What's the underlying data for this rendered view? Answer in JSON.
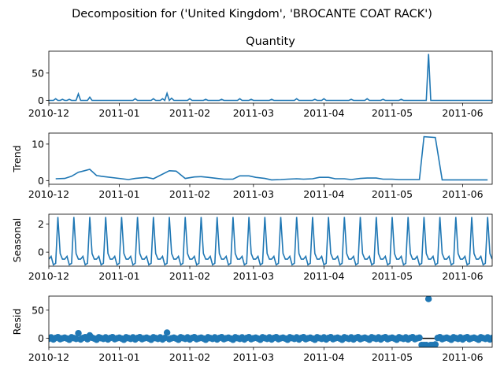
{
  "suptitle": "Decomposition for ('United Kingdom', 'BROCANTE COAT RACK')",
  "colors": {
    "line": "#1f77b4",
    "marker": "#1f77b4",
    "zero": "#000000"
  },
  "chart_data": [
    {
      "type": "line",
      "id": "observed",
      "title": "Quantity",
      "ylabel": "",
      "xlim": [
        "2010-12-01",
        "2011-06-14"
      ],
      "ylim": [
        -5,
        90
      ],
      "yticks": [
        0,
        50
      ],
      "xtick_labels": [
        "2010-12",
        "2011-01",
        "2011-02",
        "2011-03",
        "2011-04",
        "2011-05",
        "2011-06"
      ],
      "series_note": "daily quantity, mostly 0 with small spikes",
      "spikes": [
        {
          "x": "2010-12-04",
          "y": 3
        },
        {
          "x": "2010-12-07",
          "y": 2
        },
        {
          "x": "2010-12-10",
          "y": 2
        },
        {
          "x": "2010-12-14",
          "y": 12
        },
        {
          "x": "2010-12-19",
          "y": 6
        },
        {
          "x": "2011-01-08",
          "y": 3
        },
        {
          "x": "2011-01-16",
          "y": 3
        },
        {
          "x": "2011-01-20",
          "y": 3
        },
        {
          "x": "2011-01-22",
          "y": 13
        },
        {
          "x": "2011-01-24",
          "y": 4
        },
        {
          "x": "2011-02-01",
          "y": 3
        },
        {
          "x": "2011-02-08",
          "y": 2
        },
        {
          "x": "2011-02-15",
          "y": 2
        },
        {
          "x": "2011-02-23",
          "y": 3
        },
        {
          "x": "2011-02-28",
          "y": 2
        },
        {
          "x": "2011-03-09",
          "y": 2
        },
        {
          "x": "2011-03-20",
          "y": 3
        },
        {
          "x": "2011-03-28",
          "y": 2
        },
        {
          "x": "2011-04-01",
          "y": 3
        },
        {
          "x": "2011-04-13",
          "y": 2
        },
        {
          "x": "2011-04-20",
          "y": 3
        },
        {
          "x": "2011-04-27",
          "y": 2
        },
        {
          "x": "2011-05-05",
          "y": 2
        },
        {
          "x": "2011-05-17",
          "y": 85
        }
      ]
    },
    {
      "type": "line",
      "id": "trend",
      "title": "",
      "ylabel": "Trend",
      "xlim": [
        "2010-12-01",
        "2011-06-14"
      ],
      "ylim": [
        -1,
        13
      ],
      "yticks": [
        0,
        10
      ],
      "xtick_labels": [
        "2010-12",
        "2011-01",
        "2011-02",
        "2011-03",
        "2011-04",
        "2011-05",
        "2011-06"
      ],
      "x": [
        "2010-12-04",
        "2010-12-08",
        "2010-12-11",
        "2010-12-14",
        "2010-12-16",
        "2010-12-19",
        "2010-12-22",
        "2010-12-24",
        "2011-01-05",
        "2011-01-08",
        "2011-01-13",
        "2011-01-16",
        "2011-01-23",
        "2011-01-26",
        "2011-01-30",
        "2011-02-03",
        "2011-02-06",
        "2011-02-09",
        "2011-02-13",
        "2011-02-16",
        "2011-02-20",
        "2011-02-23",
        "2011-02-27",
        "2011-03-02",
        "2011-03-06",
        "2011-03-09",
        "2011-03-13",
        "2011-03-16",
        "2011-03-20",
        "2011-03-23",
        "2011-03-27",
        "2011-03-30",
        "2011-04-03",
        "2011-04-06",
        "2011-04-10",
        "2011-04-13",
        "2011-04-17",
        "2011-04-20",
        "2011-04-24",
        "2011-04-27",
        "2011-05-01",
        "2011-05-04",
        "2011-05-08",
        "2011-05-13",
        "2011-05-15",
        "2011-05-20",
        "2011-05-23",
        "2011-06-12"
      ],
      "values": [
        0.5,
        0.6,
        1.2,
        2.3,
        2.6,
        3.1,
        1.4,
        1.2,
        0.3,
        0.6,
        0.9,
        0.5,
        2.7,
        2.6,
        0.6,
        1.0,
        1.1,
        0.9,
        0.6,
        0.4,
        0.4,
        1.3,
        1.3,
        0.9,
        0.6,
        0.2,
        0.3,
        0.4,
        0.5,
        0.4,
        0.5,
        0.9,
        0.9,
        0.5,
        0.5,
        0.3,
        0.6,
        0.7,
        0.7,
        0.4,
        0.4,
        0.3,
        0.3,
        0.3,
        12.0,
        11.8,
        0.2,
        0.2
      ]
    },
    {
      "type": "line",
      "id": "seasonal",
      "title": "",
      "ylabel": "Seasonal",
      "xlim": [
        "2010-12-01",
        "2011-06-14"
      ],
      "ylim": [
        -1.0,
        2.7
      ],
      "yticks": [
        0,
        2
      ],
      "xtick_labels": [
        "2010-12",
        "2011-01",
        "2011-02",
        "2011-03",
        "2011-04",
        "2011-05",
        "2011-06"
      ],
      "period": 7,
      "pattern": [
        -0.5,
        -0.3,
        -0.9,
        -0.8,
        2.5,
        -0.1,
        -0.5
      ],
      "start": "2010-12-01"
    },
    {
      "type": "scatter",
      "id": "resid",
      "title": "",
      "ylabel": "Resid",
      "xlim": [
        "2010-12-01",
        "2011-06-14"
      ],
      "ylim": [
        -16,
        75
      ],
      "yticks": [
        0,
        50
      ],
      "xtick_labels": [
        "2010-12",
        "2011-01",
        "2011-02",
        "2011-03",
        "2011-04",
        "2011-05",
        "2011-06"
      ],
      "outliers": [
        {
          "x": "2010-12-14",
          "y": 9
        },
        {
          "x": "2010-12-19",
          "y": 5
        },
        {
          "x": "2011-01-22",
          "y": 10
        },
        {
          "x": "2011-05-17",
          "y": 70
        },
        {
          "x": "2011-05-14",
          "y": -12
        },
        {
          "x": "2011-05-15",
          "y": -12
        },
        {
          "x": "2011-05-16",
          "y": -12
        },
        {
          "x": "2011-05-18",
          "y": -12
        },
        {
          "x": "2011-05-19",
          "y": -12
        },
        {
          "x": "2011-05-20",
          "y": -11
        }
      ]
    }
  ]
}
